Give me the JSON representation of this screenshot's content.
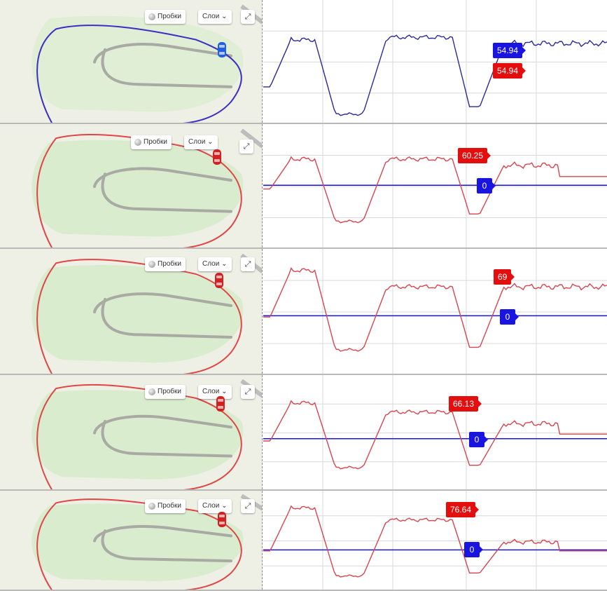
{
  "map_controls": {
    "traffic_label": "Пробки",
    "layers_label": "Слои",
    "expand_icon": "expand-arrows-icon",
    "traffic_icon": "traffic-light-icon",
    "chevron_icon": "chevron-down-icon"
  },
  "colors": {
    "red": "#e30e0e",
    "blue": "#1a14e0",
    "grid": "#d9d9d9",
    "map_bg": "#eef0e5",
    "map_green": "#d9eccd"
  },
  "panels": [
    {
      "route_color": "#3a2fc4",
      "car_color": "#1f5fe0",
      "tags": [
        {
          "color": "blue",
          "value": "54.94"
        },
        {
          "color": "red",
          "value": "54.94"
        }
      ]
    },
    {
      "route_color": "#e04646",
      "car_color": "#d12121",
      "tags": [
        {
          "color": "red",
          "value": "60.25"
        },
        {
          "color": "blue",
          "value": "0"
        }
      ]
    },
    {
      "route_color": "#e04646",
      "car_color": "#d12121",
      "tags": [
        {
          "color": "red",
          "value": "69"
        },
        {
          "color": "blue",
          "value": "0"
        }
      ]
    },
    {
      "route_color": "#e04646",
      "car_color": "#d12121",
      "tags": [
        {
          "color": "red",
          "value": "66.13"
        },
        {
          "color": "blue",
          "value": "0"
        }
      ]
    },
    {
      "route_color": "#e04646",
      "car_color": "#d12121",
      "tags": [
        {
          "color": "red",
          "value": "76.64"
        },
        {
          "color": "blue",
          "value": "0"
        }
      ]
    }
  ]
}
